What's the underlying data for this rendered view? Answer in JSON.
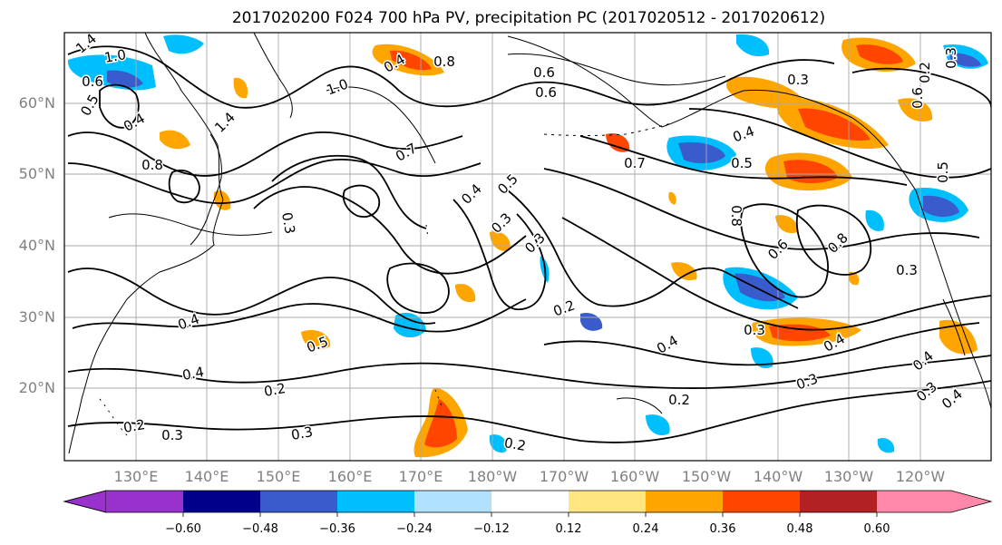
{
  "title": "2017020200 F024 700 hPa PV, precipitation PC (2017020512 - 2017020612)",
  "lat_labels": [
    "60°N",
    "50°N",
    "40°N",
    "30°N",
    "20°N"
  ],
  "lon_labels": [
    "130°E",
    "140°E",
    "150°E",
    "160°E",
    "170°E",
    "180°W",
    "170°W",
    "160°W",
    "150°W",
    "140°W",
    "130°W",
    "120°W"
  ],
  "colorbar": {
    "tick_labels": [
      "−0.60",
      "−0.48",
      "−0.36",
      "−0.24",
      "−0.12",
      "0.12",
      "0.24",
      "0.36",
      "0.48",
      "0.60"
    ],
    "colors": [
      "#9932cc",
      "#00008b",
      "#3a5bcc",
      "#00bfff",
      "#b0e2ff",
      "#ffffff",
      "#ffe680",
      "#ffa500",
      "#ff4500",
      "#b22222",
      "#ff88aa"
    ]
  },
  "contour_labels": [
    "1.4",
    "1.0",
    "0.6",
    "0.5",
    "0.4",
    "1.4",
    "0.8",
    "0.4",
    "1.0",
    "0.8",
    "0.7",
    "0.6",
    "0.5",
    "0.4",
    "0.3",
    "0.3",
    "0.3",
    "0.2",
    "0.4",
    "0.5",
    "0.4",
    "0.2",
    "0.2",
    "0.3",
    "0.3",
    "0.2",
    "0.4",
    "0.2",
    "0.3",
    "0.4",
    "0.6",
    "0.4",
    "0.7",
    "0.5",
    "0.3",
    "0.6",
    "0.8",
    "0.8",
    "0.3",
    "0.3",
    "0.4",
    "0.3",
    "0.4",
    "0.3",
    "0.5",
    "0.6",
    "0.2"
  ]
}
